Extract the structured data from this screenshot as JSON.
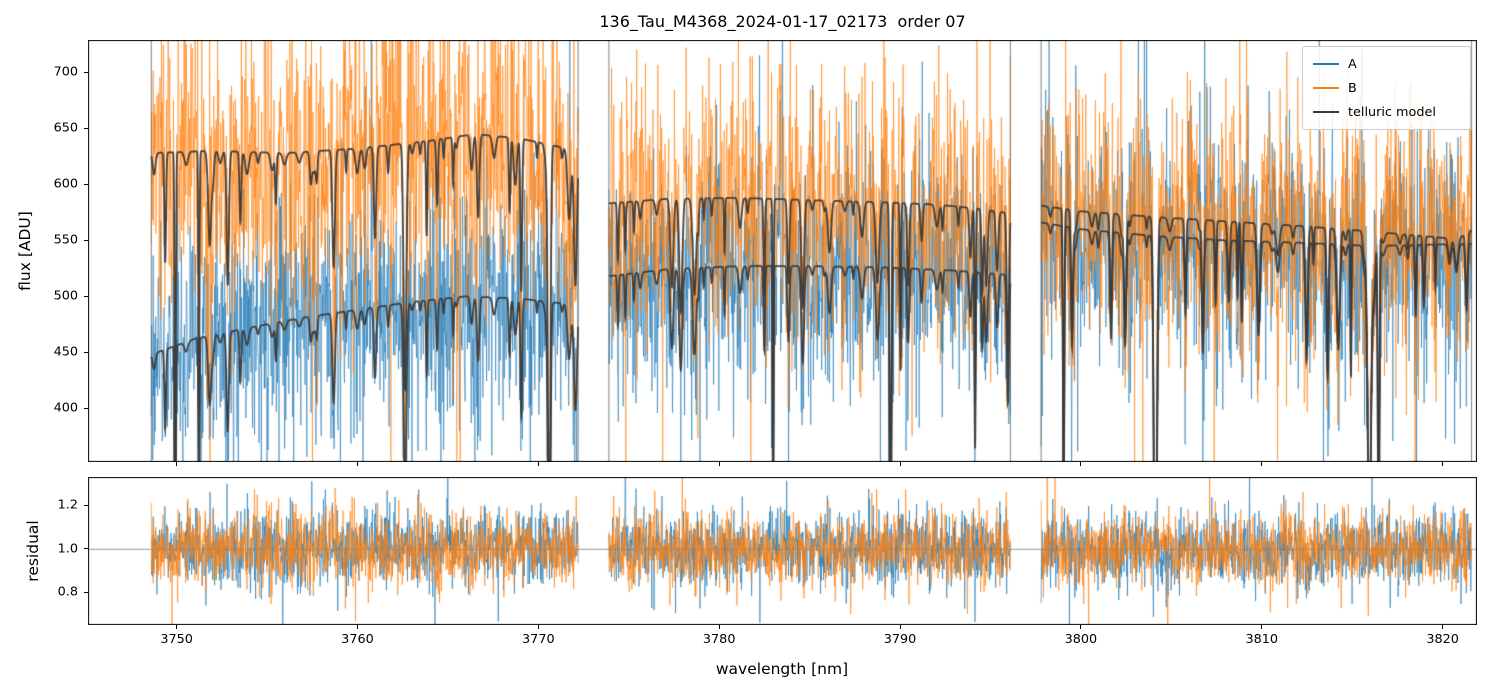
{
  "chart_data": {
    "type": "line",
    "title": "136_Tau_M4368_2024-01-17_02173  order 07",
    "xlabel": "wavelength [nm]",
    "xlim": [
      3745.1,
      3821.9
    ],
    "xticks": [
      3750,
      3760,
      3770,
      3780,
      3790,
      3800,
      3810,
      3820
    ],
    "panels": [
      {
        "name": "flux",
        "ylabel": "flux [ADU]",
        "ylim": [
          352,
          729
        ],
        "yticks": [
          400,
          450,
          500,
          550,
          600,
          650,
          700
        ]
      },
      {
        "name": "residual",
        "ylabel": "residual",
        "ylim": [
          0.65,
          1.33
        ],
        "yticks": [
          0.8,
          1.0,
          1.2
        ]
      }
    ],
    "legend": {
      "position": "upper right",
      "entries": [
        {
          "label": "A",
          "color": "#1f77b4"
        },
        {
          "label": "B",
          "color": "#ff7f0e"
        },
        {
          "label": "telluric model",
          "color": "#3a3a3a"
        }
      ]
    },
    "series_colors": {
      "A": "#1f77b4",
      "B": "#ff7f0e",
      "telluric": "#3a3a3a"
    },
    "residual_reference": 1.0,
    "residual_reference_color": "#9a9a9a",
    "noise_sigma_residual": 0.085,
    "seed": 7,
    "segments": [
      {
        "x_range": [
          3748.6,
          3772.2
        ],
        "noise_scale": 1.3,
        "A_follows": "lower",
        "B_follows": "upper",
        "telluric_upper": [
          [
            3748.6,
            628
          ],
          [
            3752,
            630
          ],
          [
            3756,
            628
          ],
          [
            3760,
            632
          ],
          [
            3764,
            639
          ],
          [
            3766.5,
            645
          ],
          [
            3769,
            641
          ],
          [
            3772.2,
            630
          ]
        ],
        "telluric_lower": [
          [
            3748.6,
            448
          ],
          [
            3751,
            462
          ],
          [
            3754,
            472
          ],
          [
            3757,
            481
          ],
          [
            3760,
            488
          ],
          [
            3763,
            495
          ],
          [
            3766,
            500
          ],
          [
            3769,
            498
          ],
          [
            3772.2,
            492
          ]
        ]
      },
      {
        "x_range": [
          3773.9,
          3796.1
        ],
        "noise_scale": 1.15,
        "A_follows": "lower",
        "B_follows": "upper",
        "telluric_upper": [
          [
            3773.9,
            583
          ],
          [
            3777,
            587
          ],
          [
            3781,
            588
          ],
          [
            3785,
            586
          ],
          [
            3789,
            584
          ],
          [
            3792,
            582
          ],
          [
            3794.5,
            578
          ],
          [
            3796.1,
            574
          ]
        ],
        "telluric_lower": [
          [
            3773.9,
            518
          ],
          [
            3777,
            524
          ],
          [
            3781,
            527
          ],
          [
            3785,
            527
          ],
          [
            3789,
            526
          ],
          [
            3793,
            523
          ],
          [
            3796.1,
            519
          ]
        ]
      },
      {
        "x_range": [
          3797.8,
          3821.6
        ],
        "noise_scale": 1.1,
        "A_follows": "lower",
        "B_follows": "upper",
        "telluric_upper": [
          [
            3797.8,
            581
          ],
          [
            3800,
            576
          ],
          [
            3804,
            571
          ],
          [
            3808,
            567
          ],
          [
            3812,
            563
          ],
          [
            3816,
            558
          ],
          [
            3819.5,
            553
          ],
          [
            3820.8,
            551
          ],
          [
            3821.6,
            559
          ]
        ],
        "telluric_lower": [
          [
            3797.8,
            566
          ],
          [
            3800,
            560
          ],
          [
            3804,
            554
          ],
          [
            3808,
            550
          ],
          [
            3812,
            548
          ],
          [
            3816,
            545
          ],
          [
            3821.6,
            547
          ]
        ]
      }
    ]
  }
}
